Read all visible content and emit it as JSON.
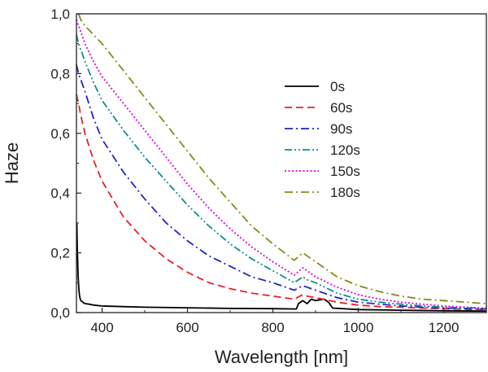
{
  "chart_data": {
    "type": "line",
    "title": "",
    "xlabel": "Wavelength [nm]",
    "ylabel": "Haze",
    "xlim": [
      340,
      1300
    ],
    "ylim": [
      0.0,
      1.0
    ],
    "x_ticks": [
      400,
      600,
      800,
      1000,
      1200
    ],
    "x_tick_labels": [
      "400",
      "600",
      "800",
      "1000",
      "1200"
    ],
    "y_ticks": [
      0.0,
      0.2,
      0.4,
      0.6,
      0.8,
      1.0
    ],
    "y_tick_labels": [
      "0,0",
      "0,2",
      "0,4",
      "0,6",
      "0,8",
      "1,0"
    ],
    "grid": false,
    "legend_position": "top-right",
    "series": [
      {
        "name": "0s",
        "color": "#000000",
        "dash": "solid",
        "x": [
          341,
          342,
          344,
          346,
          348,
          350,
          355,
          360,
          370,
          380,
          400,
          450,
          500,
          600,
          700,
          800,
          855,
          860,
          870,
          880,
          890,
          900,
          920,
          930,
          940,
          1000,
          1100,
          1200,
          1300
        ],
        "values": [
          0.3,
          0.22,
          0.12,
          0.07,
          0.05,
          0.04,
          0.035,
          0.03,
          0.028,
          0.025,
          0.022,
          0.02,
          0.018,
          0.016,
          0.014,
          0.013,
          0.012,
          0.03,
          0.04,
          0.03,
          0.045,
          0.04,
          0.045,
          0.035,
          0.015,
          0.01,
          0.008,
          0.006,
          0.005
        ]
      },
      {
        "name": "60s",
        "color": "#e8202a",
        "dash": "dashed",
        "x": [
          340,
          345,
          350,
          360,
          380,
          400,
          450,
          500,
          550,
          600,
          650,
          700,
          750,
          800,
          850,
          870,
          880,
          900,
          950,
          1000,
          1050,
          1100,
          1150,
          1200,
          1250,
          1300
        ],
        "values": [
          0.73,
          0.7,
          0.66,
          0.6,
          0.51,
          0.44,
          0.32,
          0.24,
          0.18,
          0.135,
          0.1,
          0.08,
          0.065,
          0.055,
          0.045,
          0.06,
          0.055,
          0.05,
          0.035,
          0.025,
          0.02,
          0.018,
          0.015,
          0.013,
          0.011,
          0.01
        ]
      },
      {
        "name": "90s",
        "color": "#1f23c6",
        "dash": "dashdot",
        "x": [
          340,
          345,
          350,
          360,
          380,
          400,
          450,
          500,
          550,
          600,
          650,
          700,
          750,
          800,
          850,
          870,
          880,
          900,
          950,
          1000,
          1050,
          1100,
          1150,
          1200,
          1250,
          1300
        ],
        "values": [
          0.83,
          0.8,
          0.78,
          0.74,
          0.65,
          0.58,
          0.47,
          0.38,
          0.3,
          0.24,
          0.19,
          0.155,
          0.12,
          0.1,
          0.075,
          0.09,
          0.085,
          0.075,
          0.05,
          0.035,
          0.028,
          0.022,
          0.018,
          0.015,
          0.013,
          0.012
        ]
      },
      {
        "name": "120s",
        "color": "#0a8f8f",
        "dash": "dashdotdot",
        "x": [
          340,
          345,
          350,
          360,
          380,
          400,
          450,
          500,
          550,
          600,
          650,
          700,
          750,
          800,
          850,
          870,
          880,
          900,
          950,
          1000,
          1050,
          1100,
          1150,
          1200,
          1250,
          1300
        ],
        "values": [
          0.93,
          0.9,
          0.88,
          0.84,
          0.77,
          0.71,
          0.61,
          0.52,
          0.44,
          0.36,
          0.29,
          0.23,
          0.18,
          0.14,
          0.1,
          0.12,
          0.11,
          0.1,
          0.065,
          0.045,
          0.035,
          0.028,
          0.022,
          0.018,
          0.016,
          0.015
        ]
      },
      {
        "name": "150s",
        "color": "#e000e0",
        "dash": "dotted",
        "x": [
          340,
          345,
          350,
          360,
          380,
          400,
          450,
          500,
          550,
          600,
          650,
          700,
          750,
          800,
          850,
          870,
          880,
          900,
          950,
          1000,
          1050,
          1100,
          1150,
          1200,
          1250,
          1300
        ],
        "values": [
          0.98,
          0.96,
          0.94,
          0.9,
          0.84,
          0.79,
          0.7,
          0.61,
          0.52,
          0.43,
          0.35,
          0.28,
          0.22,
          0.17,
          0.125,
          0.15,
          0.14,
          0.12,
          0.085,
          0.06,
          0.045,
          0.035,
          0.028,
          0.022,
          0.018,
          0.015
        ]
      },
      {
        "name": "180s",
        "color": "#8a8a14",
        "dash": "dashdot",
        "x": [
          345,
          350,
          360,
          380,
          400,
          450,
          500,
          550,
          600,
          650,
          700,
          750,
          800,
          850,
          870,
          880,
          900,
          950,
          1000,
          1050,
          1100,
          1150,
          1200,
          1250,
          1300
        ],
        "values": [
          1.0,
          0.98,
          0.96,
          0.93,
          0.9,
          0.81,
          0.72,
          0.63,
          0.54,
          0.45,
          0.37,
          0.29,
          0.23,
          0.175,
          0.2,
          0.19,
          0.17,
          0.12,
          0.09,
          0.07,
          0.055,
          0.045,
          0.04,
          0.035,
          0.03
        ]
      }
    ]
  }
}
